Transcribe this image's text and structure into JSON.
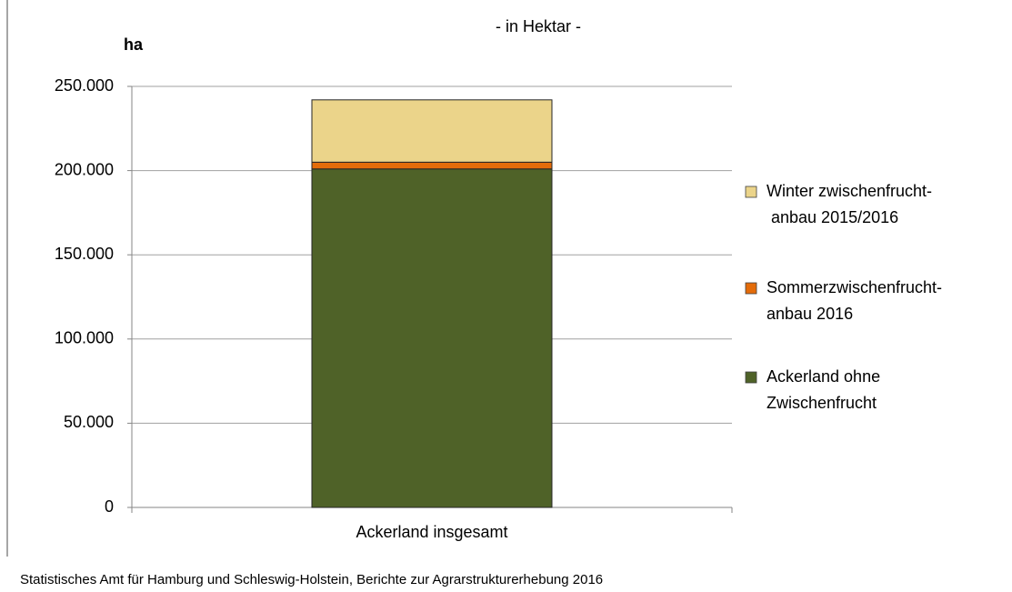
{
  "chart_data": {
    "type": "stacked_bar",
    "subtitle": "- in Hektar -",
    "y_label": "ha",
    "categories": [
      "Ackerland insgesamt"
    ],
    "series": [
      {
        "name": "Ackerland ohne\nZwischenfrucht",
        "color": "#4f6228",
        "values": [
          201000
        ]
      },
      {
        "name": "Sommerzwischenfrucht-\nanbau 2016",
        "color": "#e46c0a",
        "values": [
          4000
        ]
      },
      {
        "name": "Winter zwischenfrucht-\n anbau 2015/2016",
        "color": "#ebd48a",
        "values": [
          37000
        ]
      }
    ],
    "ylim": [
      0,
      250000
    ],
    "yticks": [
      0,
      {
        "value": 50000,
        "label": "50.000"
      },
      {
        "value": 100000,
        "label": "100.000"
      },
      {
        "value": 150000,
        "label": "150.000"
      },
      {
        "value": 200000,
        "label": "200.000"
      },
      {
        "value": 250000,
        "label": "250.000"
      }
    ],
    "grid": true,
    "legend": "right",
    "source": "Statistisches Amt für Hamburg und Schleswig-Holstein,  Berichte zur Agrarstrukturerhebung  2016"
  }
}
